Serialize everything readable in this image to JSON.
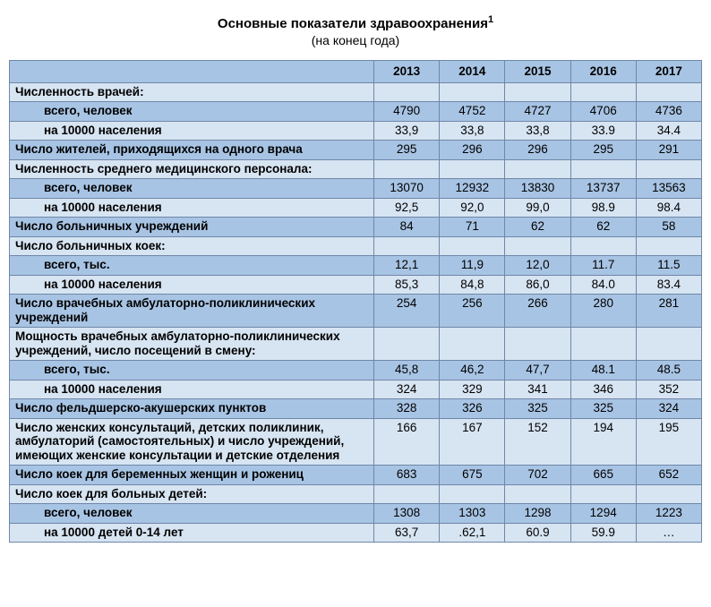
{
  "title": "Основные показатели здравоохранения",
  "title_sup": "1",
  "subtitle": "(на конец года)",
  "years": [
    "2013",
    "2014",
    "2015",
    "2016",
    "2017"
  ],
  "colors": {
    "header_bg": "#a8c4e4",
    "row_light": "#d7e4f2",
    "row_dark": "#a8c4e4",
    "border": "#6f87a8",
    "text": "#000000"
  },
  "rows": [
    {
      "shade": "light",
      "bold": true,
      "indent": 0,
      "label": "Численность врачей:",
      "values": [
        "",
        "",
        "",
        "",
        ""
      ]
    },
    {
      "shade": "dark",
      "bold": true,
      "indent": 1,
      "label": "всего, человек",
      "values": [
        "4790",
        "4752",
        "4727",
        "4706",
        "4736"
      ]
    },
    {
      "shade": "light",
      "bold": true,
      "indent": 1,
      "label": "на 10000  населения",
      "values": [
        "33,9",
        "33,8",
        "33,8",
        "33.9",
        "34.4"
      ]
    },
    {
      "shade": "dark",
      "bold": true,
      "indent": 0,
      "label": "Число жителей, приходящихся на одного врача",
      "values": [
        "295",
        "296",
        "296",
        "295",
        "291"
      ]
    },
    {
      "shade": "light",
      "bold": true,
      "indent": 0,
      "label": "Численность среднего медицинского персонала:",
      "values": [
        "",
        "",
        "",
        "",
        ""
      ]
    },
    {
      "shade": "dark",
      "bold": true,
      "indent": 1,
      "label": "всего, человек",
      "values": [
        "13070",
        "12932",
        "13830",
        "13737",
        "13563"
      ]
    },
    {
      "shade": "light",
      "bold": true,
      "indent": 1,
      "label": "на 10000 населения",
      "values": [
        "92,5",
        "92,0",
        "99,0",
        "98.9",
        "98.4"
      ]
    },
    {
      "shade": "dark",
      "bold": true,
      "indent": 0,
      "label": "Число больничных учреждений",
      "values": [
        "84",
        "71",
        "62",
        "62",
        "58"
      ]
    },
    {
      "shade": "light",
      "bold": true,
      "indent": 0,
      "label": "Число больничных коек:",
      "values": [
        "",
        "",
        "",
        "",
        ""
      ]
    },
    {
      "shade": "dark",
      "bold": true,
      "indent": 1,
      "label": "всего, тыс.",
      "values": [
        "12,1",
        "11,9",
        "12,0",
        "11.7",
        "11.5"
      ]
    },
    {
      "shade": "light",
      "bold": true,
      "indent": 1,
      "label": "на 10000 населения",
      "values": [
        "85,3",
        "84,8",
        "86,0",
        "84.0",
        "83.4"
      ]
    },
    {
      "shade": "dark",
      "bold": true,
      "indent": 0,
      "label": "Число врачебных амбулаторно-поликлинических учреждений",
      "values": [
        "254",
        "256",
        "266",
        "280",
        "281"
      ]
    },
    {
      "shade": "light",
      "bold": true,
      "indent": 0,
      "label": "Мощность врачебных амбулаторно-поликлинических учреждений, число посещений в смену:",
      "values": [
        "",
        "",
        "",
        "",
        ""
      ]
    },
    {
      "shade": "dark",
      "bold": true,
      "indent": 1,
      "label": "всего, тыс.",
      "values": [
        "45,8",
        "46,2",
        "47,7",
        "48.1",
        "48.5"
      ]
    },
    {
      "shade": "light",
      "bold": true,
      "indent": 1,
      "label": "на 10000 населения",
      "values": [
        "324",
        "329",
        "341",
        "346",
        "352"
      ]
    },
    {
      "shade": "dark",
      "bold": true,
      "indent": 0,
      "label": "Число фельдшерско-акушерских пунктов",
      "values": [
        "328",
        "326",
        "325",
        "325",
        "324"
      ]
    },
    {
      "shade": "light",
      "bold": true,
      "indent": 0,
      "label": "Число женских консультаций, детских поликлиник, амбулаторий (самостоятельных) и число учреждений, имеющих женские консультации и детские отделения",
      "values": [
        "166",
        "167",
        "152",
        "194",
        "195"
      ]
    },
    {
      "shade": "dark",
      "bold": true,
      "indent": 0,
      "label": "Число коек  для беременных женщин  и рожениц",
      "values": [
        "683",
        "675",
        "702",
        "665",
        "652"
      ]
    },
    {
      "shade": "light",
      "bold": true,
      "indent": 0,
      "label": "Число коек для больных детей:",
      "values": [
        "",
        "",
        "",
        "",
        ""
      ]
    },
    {
      "shade": "dark",
      "bold": true,
      "indent": 1,
      "label": "всего, человек",
      "values": [
        "1308",
        "1303",
        "1298",
        "1294",
        "1223"
      ]
    },
    {
      "shade": "light",
      "bold": true,
      "indent": 1,
      "label": "на 10000 детей 0-14 лет",
      "values": [
        "63,7",
        ".62,1",
        "60.9",
        "59.9",
        "…"
      ]
    }
  ]
}
